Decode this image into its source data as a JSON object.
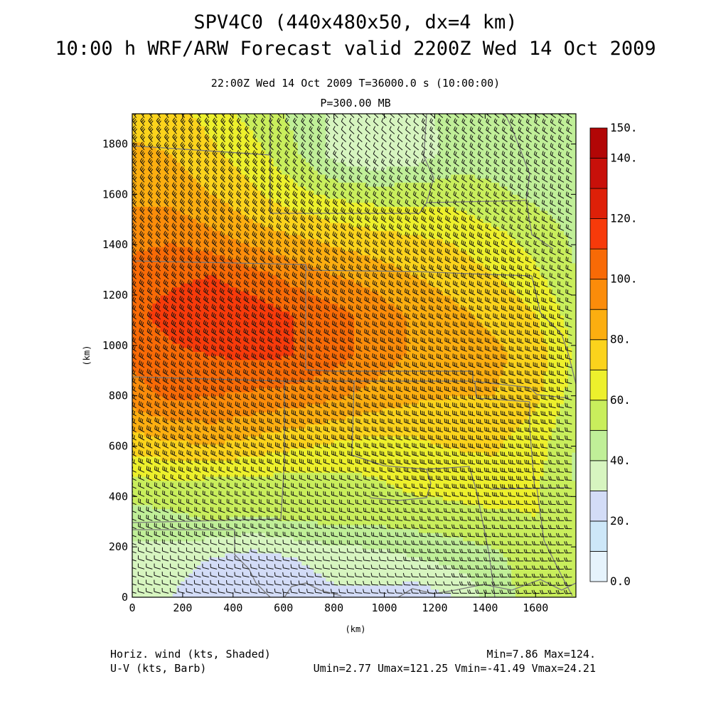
{
  "header": {
    "title_line1": "SPV4C0 (440x480x50, dx=4 km)",
    "title_line2": "10:00 h WRF/ARW Forecast valid 2200Z Wed 14 Oct 2009",
    "valid_line": "22:00Z Wed 14 Oct 2009    T=36000.0 s (10:00:00)",
    "level_line": "P=300.00 MB"
  },
  "footer": {
    "left_line1": "Horiz. wind (kts, Shaded)",
    "left_line2": "U-V (kts, Barb)",
    "right_line1": "Min=7.86 Max=124.",
    "right_line2": "Umin=2.77 Umax=121.25 Vmin=-41.49 Vmax=24.21"
  },
  "chart_data": {
    "type": "heatmap",
    "xlabel": "(km)",
    "ylabel": "(km)",
    "xlim": [
      0,
      1760
    ],
    "ylim": [
      0,
      1920
    ],
    "x_ticks": [
      0,
      200,
      400,
      600,
      800,
      1000,
      1200,
      1400,
      1600
    ],
    "y_ticks": [
      0,
      200,
      400,
      600,
      800,
      1000,
      1200,
      1400,
      1600,
      1800
    ],
    "x_tick_labels": [
      "0",
      "200",
      "400",
      "600",
      "800",
      "1000",
      "1200",
      "1400",
      "1600"
    ],
    "y_tick_labels": [
      "0",
      "200",
      "400",
      "600",
      "800",
      "1000",
      "1200",
      "1400",
      "1600",
      "1800"
    ],
    "colorbar": {
      "levels": [
        0,
        10,
        20,
        30,
        40,
        50,
        60,
        70,
        80,
        90,
        100,
        110,
        120,
        130,
        140,
        150
      ],
      "colors": [
        "#e6f3fc",
        "#cde7f8",
        "#d3dcf7",
        "#d7f5c0",
        "#c0ef98",
        "#c9ee5c",
        "#edf02c",
        "#fbd31c",
        "#fcae10",
        "#fb8c0a",
        "#f86a06",
        "#f73a0a",
        "#de2008",
        "#c8100a",
        "#b20606"
      ],
      "tick_labels": [
        "0.0",
        "20.",
        "40.",
        "60.",
        "80.",
        "100.",
        "120.",
        "140.",
        "150."
      ],
      "tick_values": [
        0,
        20,
        40,
        60,
        80,
        100,
        120,
        140,
        150
      ]
    },
    "field": {
      "description_units": "kts",
      "min": 7.86,
      "max": 124.0,
      "grid_x": [
        0,
        160,
        320,
        480,
        640,
        800,
        960,
        1120,
        1280,
        1440,
        1600,
        1760
      ],
      "grid_y": [
        0,
        160,
        320,
        480,
        640,
        800,
        960,
        1120,
        1280,
        1440,
        1600,
        1760,
        1920
      ],
      "values": [
        [
          34,
          30,
          22,
          20,
          24,
          28,
          28,
          24,
          30,
          45,
          55,
          60
        ],
        [
          36,
          34,
          30,
          26,
          30,
          34,
          36,
          40,
          44,
          48,
          55,
          60
        ],
        [
          45,
          48,
          52,
          50,
          52,
          54,
          54,
          55,
          56,
          58,
          60,
          58
        ],
        [
          60,
          62,
          60,
          60,
          58,
          58,
          60,
          64,
          66,
          68,
          62,
          48
        ],
        [
          78,
          82,
          85,
          80,
          76,
          72,
          70,
          70,
          72,
          72,
          66,
          50
        ],
        [
          96,
          102,
          100,
          98,
          96,
          92,
          86,
          82,
          80,
          80,
          72,
          55
        ],
        [
          102,
          108,
          110,
          112,
          110,
          104,
          96,
          88,
          84,
          82,
          76,
          58
        ],
        [
          108,
          114,
          118,
          116,
          110,
          104,
          96,
          88,
          82,
          78,
          70,
          55
        ],
        [
          104,
          108,
          110,
          104,
          96,
          90,
          86,
          80,
          76,
          70,
          62,
          50
        ],
        [
          96,
          98,
          92,
          84,
          80,
          76,
          72,
          70,
          68,
          62,
          56,
          48
        ],
        [
          88,
          86,
          80,
          72,
          64,
          58,
          56,
          56,
          56,
          52,
          48,
          44
        ],
        [
          82,
          80,
          72,
          64,
          52,
          36,
          30,
          34,
          44,
          46,
          44,
          42
        ],
        [
          76,
          74,
          66,
          56,
          48,
          38,
          32,
          36,
          44,
          48,
          50,
          48
        ]
      ]
    },
    "barbs": {
      "spacing_km": 32,
      "direction_note": "predominantly westerly-to-northwesterly",
      "u_range": [
        2.77,
        121.25
      ],
      "v_range": [
        -41.49,
        24.21
      ]
    }
  }
}
